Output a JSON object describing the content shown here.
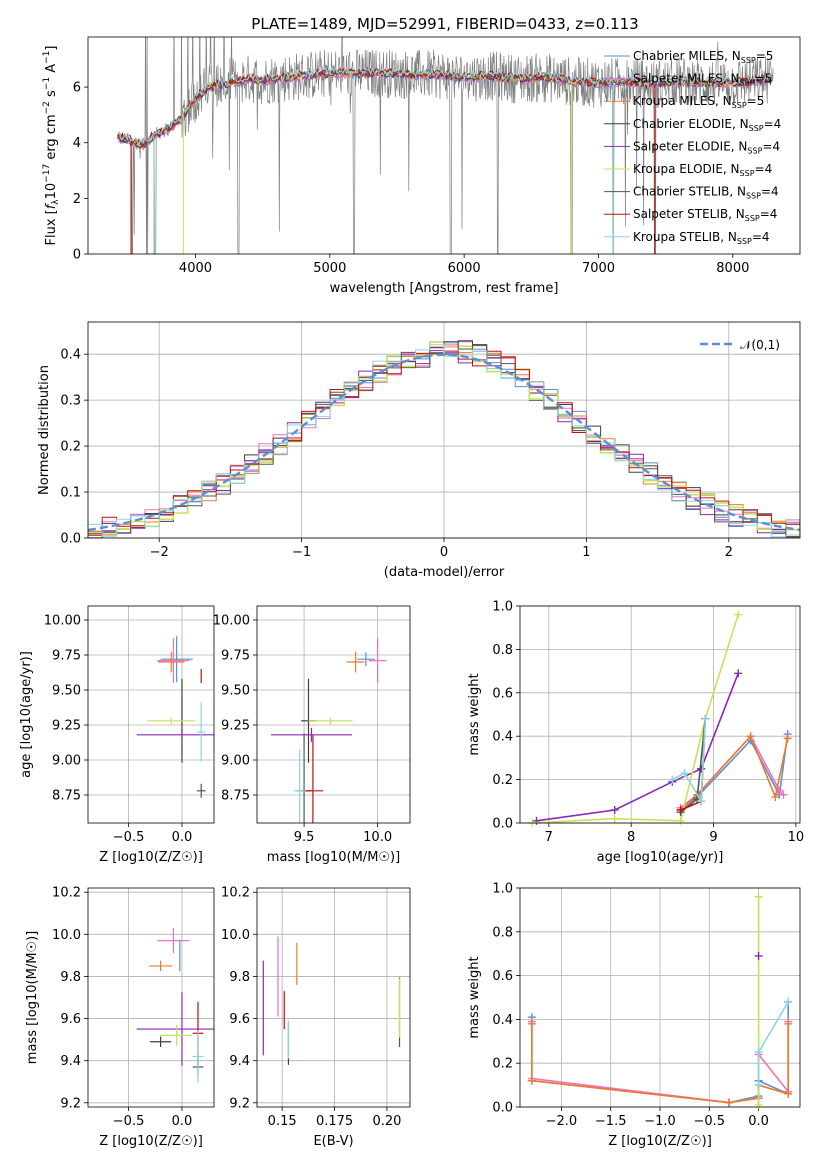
{
  "figure": {
    "title": "PLATE=1489, MJD=52991, FIBERID=0433, z=0.113"
  },
  "palette": {
    "Chabrier MILES": "#5b8fd6",
    "Salpeter MILES": "#f06fc0",
    "Kroupa MILES": "#ee7a2c",
    "Chabrier ELODIE": "#3f3f3f",
    "Salpeter ELODIE": "#8b28b4",
    "Kroupa ELODIE": "#c7e25a",
    "Chabrier STELIB": "#555555",
    "Salpeter STELIB": "#c01010",
    "Kroupa STELIB": "#8ad6e0",
    "data": "#7f7f7f",
    "normal": "#5b8fd6"
  },
  "chart_data": [
    {
      "id": "spectrum",
      "type": "line",
      "xlabel": "wavelength [Angstrom, rest frame]",
      "ylabel": "Flux [f_λ 10^-17 erg cm^-2 s^-1 A^-1]",
      "xlim": [
        3200,
        8500
      ],
      "ylim": [
        0,
        7.8
      ],
      "xticks": [
        4000,
        5000,
        6000,
        7000,
        8000
      ],
      "yticks": [
        0,
        2,
        4,
        6
      ],
      "grid": false,
      "legend_position": "right",
      "legend": [
        {
          "name": "Chabrier MILES",
          "sub": "N_SSP=5"
        },
        {
          "name": "Salpeter MILES",
          "sub": "N_SSP=5"
        },
        {
          "name": "Kroupa MILES",
          "sub": "N_SSP=5"
        },
        {
          "name": "Chabrier ELODIE",
          "sub": "N_SSP=4"
        },
        {
          "name": "Salpeter ELODIE",
          "sub": "N_SSP=4"
        },
        {
          "name": "Kroupa ELODIE",
          "sub": "N_SSP=4"
        },
        {
          "name": "Chabrier STELIB",
          "sub": "N_SSP=4"
        },
        {
          "name": "Salpeter STELIB",
          "sub": "N_SSP=4"
        },
        {
          "name": "Kroupa STELIB",
          "sub": "N_SSP=4"
        }
      ],
      "model_curve": {
        "x": [
          3420,
          3500,
          3600,
          3700,
          3800,
          3900,
          4000,
          4100,
          4200,
          4300,
          4400,
          4500,
          4600,
          4800,
          5000,
          5200,
          5400,
          5600,
          5800,
          6000,
          6200,
          6400,
          6600,
          6800,
          7000,
          7200,
          7400,
          7600,
          7800,
          8000,
          8200,
          8300
        ],
        "y": [
          4.2,
          4.1,
          3.9,
          4.3,
          4.5,
          4.9,
          5.6,
          6.0,
          6.1,
          6.2,
          6.3,
          6.25,
          6.3,
          6.4,
          6.5,
          6.5,
          6.5,
          6.45,
          6.45,
          6.35,
          6.4,
          6.3,
          6.35,
          6.2,
          6.15,
          6.2,
          6.1,
          6.2,
          6.15,
          6.15,
          6.25,
          6.3
        ]
      }
    },
    {
      "id": "residuals",
      "type": "line",
      "xlabel": "(data-model)/error",
      "ylabel": "Normed distribution",
      "xlim": [
        -2.5,
        2.5
      ],
      "ylim": [
        0,
        0.47
      ],
      "xticks": [
        -2,
        -1,
        0,
        1,
        2
      ],
      "yticks": [
        0.0,
        0.1,
        0.2,
        0.3,
        0.4
      ],
      "grid": true,
      "legend_position": "top-right",
      "legend": [
        "𝒩(0,1)"
      ],
      "normal_sigma": 1
    },
    {
      "id": "age_vs_Z",
      "type": "scatter",
      "xlabel": "Z [log10(Z/Z☉)]",
      "ylabel": "age  [log10(age/yr)]",
      "xlim": [
        -0.88,
        0.3
      ],
      "ylim": [
        8.55,
        10.1
      ],
      "xticks": [
        -0.5,
        0.0
      ],
      "yticks": [
        8.75,
        9.0,
        9.25,
        9.5,
        9.75,
        10.0
      ],
      "grid": true,
      "points": [
        {
          "s": "Chabrier MILES",
          "x": -0.05,
          "y": 9.72,
          "dx": 0.3,
          "dy": 0.33
        },
        {
          "s": "Salpeter MILES",
          "x": -0.08,
          "y": 9.71,
          "dx": 0.3,
          "dy": 0.32
        },
        {
          "s": "Kroupa MILES",
          "x": -0.1,
          "y": 9.7,
          "dx": 0.25,
          "dy": 0.15
        },
        {
          "s": "Chabrier ELODIE",
          "x": 0.0,
          "y": 9.28,
          "dx": 0.0,
          "dy": 0.6
        },
        {
          "s": "Salpeter ELODIE",
          "x": 0.0,
          "y": 9.18,
          "dx": 0.85,
          "dy": 0.1
        },
        {
          "s": "Kroupa ELODIE",
          "x": -0.1,
          "y": 9.28,
          "dx": 0.45,
          "dy": 0.05
        },
        {
          "s": "Chabrier STELIB",
          "x": 0.18,
          "y": 8.78,
          "dx": 0.08,
          "dy": 0.1
        },
        {
          "s": "Salpeter STELIB",
          "x": 0.18,
          "y": 9.6,
          "dx": 0.0,
          "dy": 0.1
        },
        {
          "s": "Kroupa STELIB",
          "x": 0.18,
          "y": 9.2,
          "dx": 0.08,
          "dy": 0.42
        }
      ]
    },
    {
      "id": "age_vs_mass",
      "type": "scatter",
      "xlabel": "mass [log10(M/M☉)]",
      "xlim": [
        9.18,
        10.22
      ],
      "ylim": [
        8.55,
        10.1
      ],
      "xticks": [
        9.5,
        10.0
      ],
      "yticks": [
        8.75,
        9.0,
        9.25,
        9.5,
        9.75,
        10.0
      ],
      "grid": true,
      "points": [
        {
          "s": "Chabrier MILES",
          "x": 9.92,
          "y": 9.72,
          "dx": 0.12,
          "dy": 0.1
        },
        {
          "s": "Salpeter MILES",
          "x": 10.0,
          "y": 9.71,
          "dx": 0.12,
          "dy": 0.32
        },
        {
          "s": "Kroupa MILES",
          "x": 9.85,
          "y": 9.7,
          "dx": 0.12,
          "dy": 0.15
        },
        {
          "s": "Chabrier ELODIE",
          "x": 9.53,
          "y": 9.28,
          "dx": 0.1,
          "dy": 0.6
        },
        {
          "s": "Salpeter ELODIE",
          "x": 9.55,
          "y": 9.18,
          "dx": 0.55,
          "dy": 0.1
        },
        {
          "s": "Kroupa ELODIE",
          "x": 9.68,
          "y": 9.28,
          "dx": 0.3,
          "dy": 0.05
        },
        {
          "s": "Chabrier STELIB",
          "x": 9.5,
          "y": 8.78,
          "dx": 0.1,
          "dy": 0.82
        },
        {
          "s": "Salpeter STELIB",
          "x": 9.56,
          "y": 8.78,
          "dx": 0.14,
          "dy": 0.8
        },
        {
          "s": "Kroupa STELIB",
          "x": 9.47,
          "y": 8.78,
          "dx": 0.08,
          "dy": 0.6
        }
      ]
    },
    {
      "id": "massweight_vs_age",
      "type": "line",
      "xlabel": "age  [log10(age/yr)]",
      "ylabel": "mass weight",
      "xlim": [
        6.65,
        10.05
      ],
      "ylim": [
        0,
        1.0
      ],
      "xticks": [
        7,
        8,
        9,
        10
      ],
      "yticks": [
        0.0,
        0.2,
        0.4,
        0.6,
        0.8,
        1.0
      ],
      "grid": true,
      "series": [
        {
          "s": "Chabrier MILES",
          "x": [
            8.6,
            8.8,
            9.45,
            9.8,
            9.9
          ],
          "y": [
            0.06,
            0.12,
            0.38,
            0.13,
            0.41
          ]
        },
        {
          "s": "Salpeter MILES",
          "x": [
            8.6,
            8.8,
            9.45,
            9.8,
            9.85
          ],
          "y": [
            0.07,
            0.13,
            0.4,
            0.15,
            0.13
          ]
        },
        {
          "s": "Kroupa MILES",
          "x": [
            8.6,
            8.8,
            9.45,
            9.75,
            9.9
          ],
          "y": [
            0.06,
            0.13,
            0.4,
            0.12,
            0.39
          ]
        },
        {
          "s": "Salpeter ELODIE",
          "x": [
            6.85,
            7.8,
            8.5,
            8.85,
            9.3
          ],
          "y": [
            0.01,
            0.06,
            0.19,
            0.25,
            0.69
          ]
        },
        {
          "s": "Kroupa ELODIE",
          "x": [
            6.8,
            7.8,
            8.6,
            8.9,
            9.3
          ],
          "y": [
            0.0,
            0.02,
            0.01,
            0.48,
            0.96
          ]
        },
        {
          "s": "Chabrier STELIB",
          "x": [
            8.6,
            8.8,
            8.9
          ],
          "y": [
            0.05,
            0.11,
            0.48
          ]
        },
        {
          "s": "Salpeter STELIB",
          "x": [
            8.6,
            8.85,
            8.9
          ],
          "y": [
            0.06,
            0.1,
            0.48
          ]
        },
        {
          "s": "Kroupa STELIB",
          "x": [
            8.5,
            8.65,
            8.85,
            8.9
          ],
          "y": [
            0.2,
            0.23,
            0.1,
            0.48
          ]
        }
      ]
    },
    {
      "id": "mass_vs_Z",
      "type": "scatter",
      "xlabel": "Z [log10(Z/Z☉)]",
      "ylabel": "mass [log10(M/M☉)]",
      "xlim": [
        -0.88,
        0.3
      ],
      "ylim": [
        9.18,
        10.22
      ],
      "xticks": [
        -0.5,
        0.0
      ],
      "yticks": [
        9.2,
        9.4,
        9.6,
        9.8,
        10.0,
        10.2
      ],
      "grid": true,
      "points": [
        {
          "s": "Chabrier MILES",
          "x": -0.02,
          "y": 9.9,
          "dx": 0.0,
          "dy": 0.15
        },
        {
          "s": "Salpeter MILES",
          "x": -0.08,
          "y": 9.97,
          "dx": 0.3,
          "dy": 0.12
        },
        {
          "s": "Kroupa MILES",
          "x": -0.2,
          "y": 9.85,
          "dx": 0.22,
          "dy": 0.05
        },
        {
          "s": "Chabrier ELODIE",
          "x": -0.2,
          "y": 9.49,
          "dx": 0.2,
          "dy": 0.05
        },
        {
          "s": "Salpeter ELODIE",
          "x": 0.0,
          "y": 9.55,
          "dx": 0.85,
          "dy": 0.35
        },
        {
          "s": "Kroupa ELODIE",
          "x": -0.05,
          "y": 9.52,
          "dx": 0.3,
          "dy": 0.1
        },
        {
          "s": "Chabrier STELIB",
          "x": 0.15,
          "y": 9.37,
          "dx": 0.1,
          "dy": 0.1
        },
        {
          "s": "Salpeter STELIB",
          "x": 0.15,
          "y": 9.53,
          "dx": 0.1,
          "dy": 0.3
        },
        {
          "s": "Kroupa STELIB",
          "x": 0.15,
          "y": 9.42,
          "dx": 0.1,
          "dy": 0.25
        }
      ]
    },
    {
      "id": "mass_vs_EBV",
      "type": "scatter",
      "xlabel": "E(B-V)",
      "xlim": [
        0.138,
        0.211
      ],
      "ylim": [
        9.18,
        10.22
      ],
      "xticks": [
        0.15,
        0.175,
        0.2
      ],
      "yticks": [
        9.2,
        9.4,
        9.6,
        9.8,
        10.0,
        10.2
      ],
      "grid": true,
      "points": [
        {
          "s": "Salpeter ELODIE",
          "x": 0.141,
          "y": 9.65,
          "dx": 0.0,
          "dy": 0.45
        },
        {
          "s": "Salpeter MILES",
          "x": 0.148,
          "y": 9.8,
          "dx": 0.0,
          "dy": 0.38
        },
        {
          "s": "Salpeter STELIB",
          "x": 0.151,
          "y": 9.64,
          "dx": 0.0,
          "dy": 0.18
        },
        {
          "s": "Chabrier ELODIE",
          "x": 0.153,
          "y": 9.48,
          "dx": 0.0,
          "dy": 0.2
        },
        {
          "s": "Kroupa STELIB",
          "x": 0.153,
          "y": 9.5,
          "dx": 0.0,
          "dy": 0.18
        },
        {
          "s": "Kroupa MILES",
          "x": 0.157,
          "y": 9.86,
          "dx": 0.0,
          "dy": 0.2
        },
        {
          "s": "Chabrier STELIB",
          "x": 0.206,
          "y": 9.63,
          "dx": 0.0,
          "dy": 0.33
        },
        {
          "s": "Kroupa ELODIE",
          "x": 0.206,
          "y": 9.65,
          "dx": 0.0,
          "dy": 0.28
        }
      ]
    },
    {
      "id": "massweight_vs_Z",
      "type": "line",
      "xlabel": "Z [log10(Z/Z☉)]",
      "ylabel": "mass weight",
      "xlim": [
        -2.42,
        0.42
      ],
      "ylim": [
        0,
        1.0
      ],
      "xticks": [
        -2.0,
        -1.5,
        -1.0,
        -0.5,
        0.0
      ],
      "yticks": [
        0.0,
        0.2,
        0.4,
        0.6,
        0.8,
        1.0
      ],
      "grid": true,
      "series": [
        {
          "s": "Chabrier MILES",
          "x": [
            -2.3,
            -2.3,
            -0.3,
            0.0,
            0.0,
            0.3,
            0.3
          ],
          "y": [
            0.41,
            0.12,
            0.02,
            0.05,
            0.12,
            0.06,
            0.48
          ]
        },
        {
          "s": "Salpeter MILES",
          "x": [
            -2.3,
            -2.3,
            -0.3,
            0.0,
            0.0,
            0.3,
            0.3
          ],
          "y": [
            0.39,
            0.13,
            0.02,
            0.04,
            0.24,
            0.07,
            0.39
          ]
        },
        {
          "s": "Kroupa MILES",
          "x": [
            -2.3,
            -2.3,
            -0.3,
            0.0,
            0.0,
            0.3,
            0.3
          ],
          "y": [
            0.38,
            0.12,
            0.02,
            0.04,
            0.1,
            0.06,
            0.38
          ]
        },
        {
          "s": "Kroupa ELODIE",
          "x": [
            0.0,
            0.0
          ],
          "y": [
            0.01,
            0.96
          ]
        },
        {
          "s": "Salpeter ELODIE",
          "x": [
            0.0
          ],
          "y": [
            0.69
          ]
        },
        {
          "s": "Kroupa STELIB",
          "x": [
            0.0,
            0.0,
            0.3
          ],
          "y": [
            0.1,
            0.25,
            0.48
          ]
        }
      ]
    }
  ]
}
